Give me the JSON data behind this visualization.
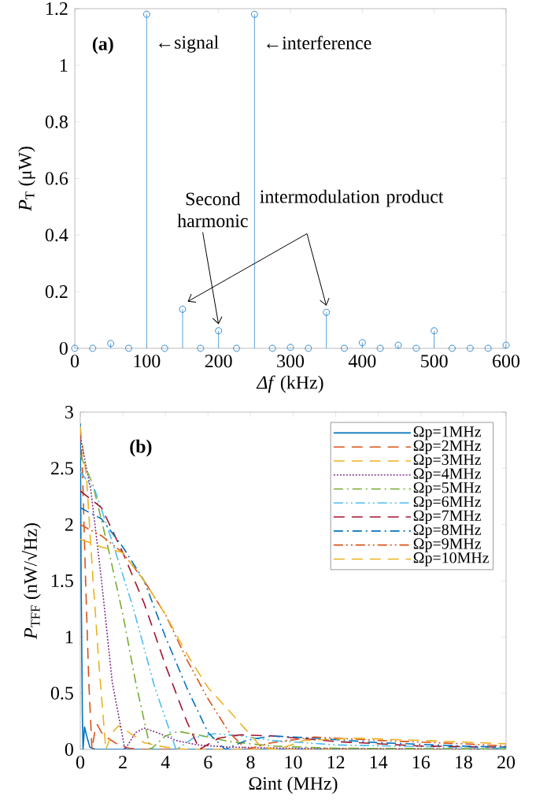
{
  "chart_data": [
    {
      "type": "lollipop",
      "x": [
        0,
        25,
        50,
        75,
        100,
        125,
        150,
        175,
        200,
        225,
        250,
        275,
        300,
        325,
        350,
        375,
        400,
        425,
        450,
        475,
        500,
        525,
        550,
        575,
        600
      ],
      "values": [
        0,
        0,
        0.017,
        0,
        1.18,
        0,
        0.138,
        0,
        0.062,
        0,
        1.18,
        0,
        0.003,
        0,
        0.127,
        0,
        0.02,
        0,
        0.011,
        0,
        0.062,
        0,
        0,
        0,
        0.011
      ],
      "color": "#2f8ad0",
      "marker": "circle",
      "xlim": [
        0,
        600
      ],
      "ylim": [
        0,
        1.2
      ],
      "xticks": [
        0,
        100,
        200,
        300,
        400,
        500,
        600
      ],
      "yticks": [
        0,
        0.2,
        0.4,
        0.6,
        0.8,
        1,
        1.2
      ],
      "xlabel": "*Δf*  (kHz)",
      "ylabel": "*P*$_{T}$  (μW)",
      "annotations": [
        "(a)",
        "←signal",
        "←interference",
        "Second harmonic",
        "intermodulation product"
      ]
    },
    {
      "type": "line",
      "marker": "none",
      "legend": "top right",
      "xlim": [
        0,
        20
      ],
      "ylim": [
        0,
        3
      ],
      "xticks": [
        0,
        2,
        4,
        6,
        8,
        10,
        12,
        14,
        16,
        18,
        20
      ],
      "yticks": [
        0,
        0.5,
        1,
        1.5,
        2,
        2.5,
        3
      ],
      "xlabel": "Ωint (MHz)",
      "ylabel": "*P*$_{TFF}$  (nW/√Hz)",
      "annotations": [
        "(b)"
      ],
      "series": [
        {
          "name": "Ωp=1MHz",
          "color": "#0072bd",
          "line_style": "solid",
          "x": [
            0,
            0.04,
            0.1,
            0.13,
            0.2,
            0.3,
            0.45,
            0.7,
            20
          ],
          "values": [
            2.9,
            1.5,
            0.3,
            0,
            0.2,
            0.12,
            0.02,
            0,
            0
          ]
        },
        {
          "name": "Ωp=2MHz",
          "color": "#d95319",
          "line_style": "dashed",
          "x": [
            0,
            0.1,
            0.25,
            0.4,
            0.55,
            0.7,
            0.8,
            1.0,
            1.3,
            1.8,
            2.3,
            3,
            20
          ],
          "values": [
            2.83,
            2.5,
            1.5,
            0.6,
            0,
            0.18,
            0.22,
            0.15,
            0.1,
            0.04,
            0.01,
            0,
            0
          ]
        },
        {
          "name": "Ωp=3MHz",
          "color": "#edb120",
          "line_style": "dashed",
          "x": [
            0,
            0.3,
            0.6,
            0.9,
            1.2,
            1.5,
            1.8,
            2.3,
            3,
            4,
            5,
            20
          ],
          "values": [
            2.87,
            2.4,
            1.5,
            0.7,
            0,
            0.15,
            0.21,
            0.15,
            0.06,
            0.02,
            0,
            0
          ]
        },
        {
          "name": "Ωp=4MHz",
          "color": "#7e2f8e",
          "line_style": "dotted",
          "x": [
            0,
            0.5,
            1.0,
            1.5,
            2.1,
            2.6,
            3.0,
            3.6,
            4.5,
            5.5,
            7,
            10,
            20
          ],
          "values": [
            2.78,
            2.3,
            1.5,
            0.6,
            0,
            0.15,
            0.19,
            0.15,
            0.08,
            0.04,
            0.02,
            0.01,
            0
          ]
        },
        {
          "name": "Ωp=5MHz",
          "color": "#77ac30",
          "line_style": "dashdot",
          "x": [
            0,
            0.6,
            1.3,
            2,
            2.6,
            3.3,
            4,
            4.6,
            5.5,
            7,
            9,
            12,
            20
          ],
          "values": [
            2.62,
            2.35,
            1.8,
            1.2,
            0.6,
            0,
            0.12,
            0.16,
            0.13,
            0.07,
            0.03,
            0.01,
            0.005
          ]
        },
        {
          "name": "Ωp=6MHz",
          "color": "#4dbeee",
          "line_style": "dashdotdot",
          "x": [
            0,
            0.7,
            1.5,
            2.5,
            3.5,
            4.5,
            5.3,
            6.3,
            7.5,
            9,
            12,
            20
          ],
          "values": [
            2.47,
            2.3,
            1.85,
            1.25,
            0.55,
            0,
            0.1,
            0.14,
            0.12,
            0.08,
            0.04,
            0.01
          ]
        },
        {
          "name": "Ωp=7MHz",
          "color": "#a2142f",
          "line_style": "dashed",
          "x": [
            0,
            1,
            2,
            3,
            4,
            5,
            5.6,
            6.5,
            7.5,
            9,
            12,
            16,
            20
          ],
          "values": [
            2.3,
            2.15,
            1.75,
            1.3,
            0.75,
            0.25,
            0,
            0.1,
            0.13,
            0.12,
            0.07,
            0.03,
            0.02
          ]
        },
        {
          "name": "Ωp=8MHz",
          "color": "#0072bd",
          "line_style": "dashdot",
          "x": [
            0,
            1,
            2,
            3,
            4,
            5,
            6,
            6.8,
            7.8,
            9,
            11,
            14,
            18,
            20
          ],
          "values": [
            2.15,
            2.05,
            1.8,
            1.5,
            1.0,
            0.55,
            0.15,
            0,
            0.08,
            0.12,
            0.1,
            0.06,
            0.03,
            0.02
          ]
        },
        {
          "name": "Ωp=9MHz",
          "color": "#d95319",
          "line_style": "dashdotdot",
          "x": [
            0,
            1,
            2,
            3,
            4,
            5,
            6,
            7,
            7.8,
            9,
            11,
            14,
            18,
            20
          ],
          "values": [
            2.0,
            1.9,
            1.75,
            1.5,
            1.2,
            0.8,
            0.45,
            0.15,
            0,
            0.06,
            0.11,
            0.08,
            0.05,
            0.03
          ]
        },
        {
          "name": "Ωp=10MHz",
          "color": "#edb120",
          "line_style": "dashed",
          "x": [
            0,
            1,
            2,
            3,
            4,
            5,
            6,
            7.2,
            8.5,
            9.3,
            10.5,
            13,
            16,
            20
          ],
          "values": [
            1.87,
            1.8,
            1.75,
            1.5,
            1.2,
            0.85,
            0.55,
            0.3,
            0.02,
            0,
            0.08,
            0.1,
            0.08,
            0.05
          ]
        }
      ]
    }
  ]
}
